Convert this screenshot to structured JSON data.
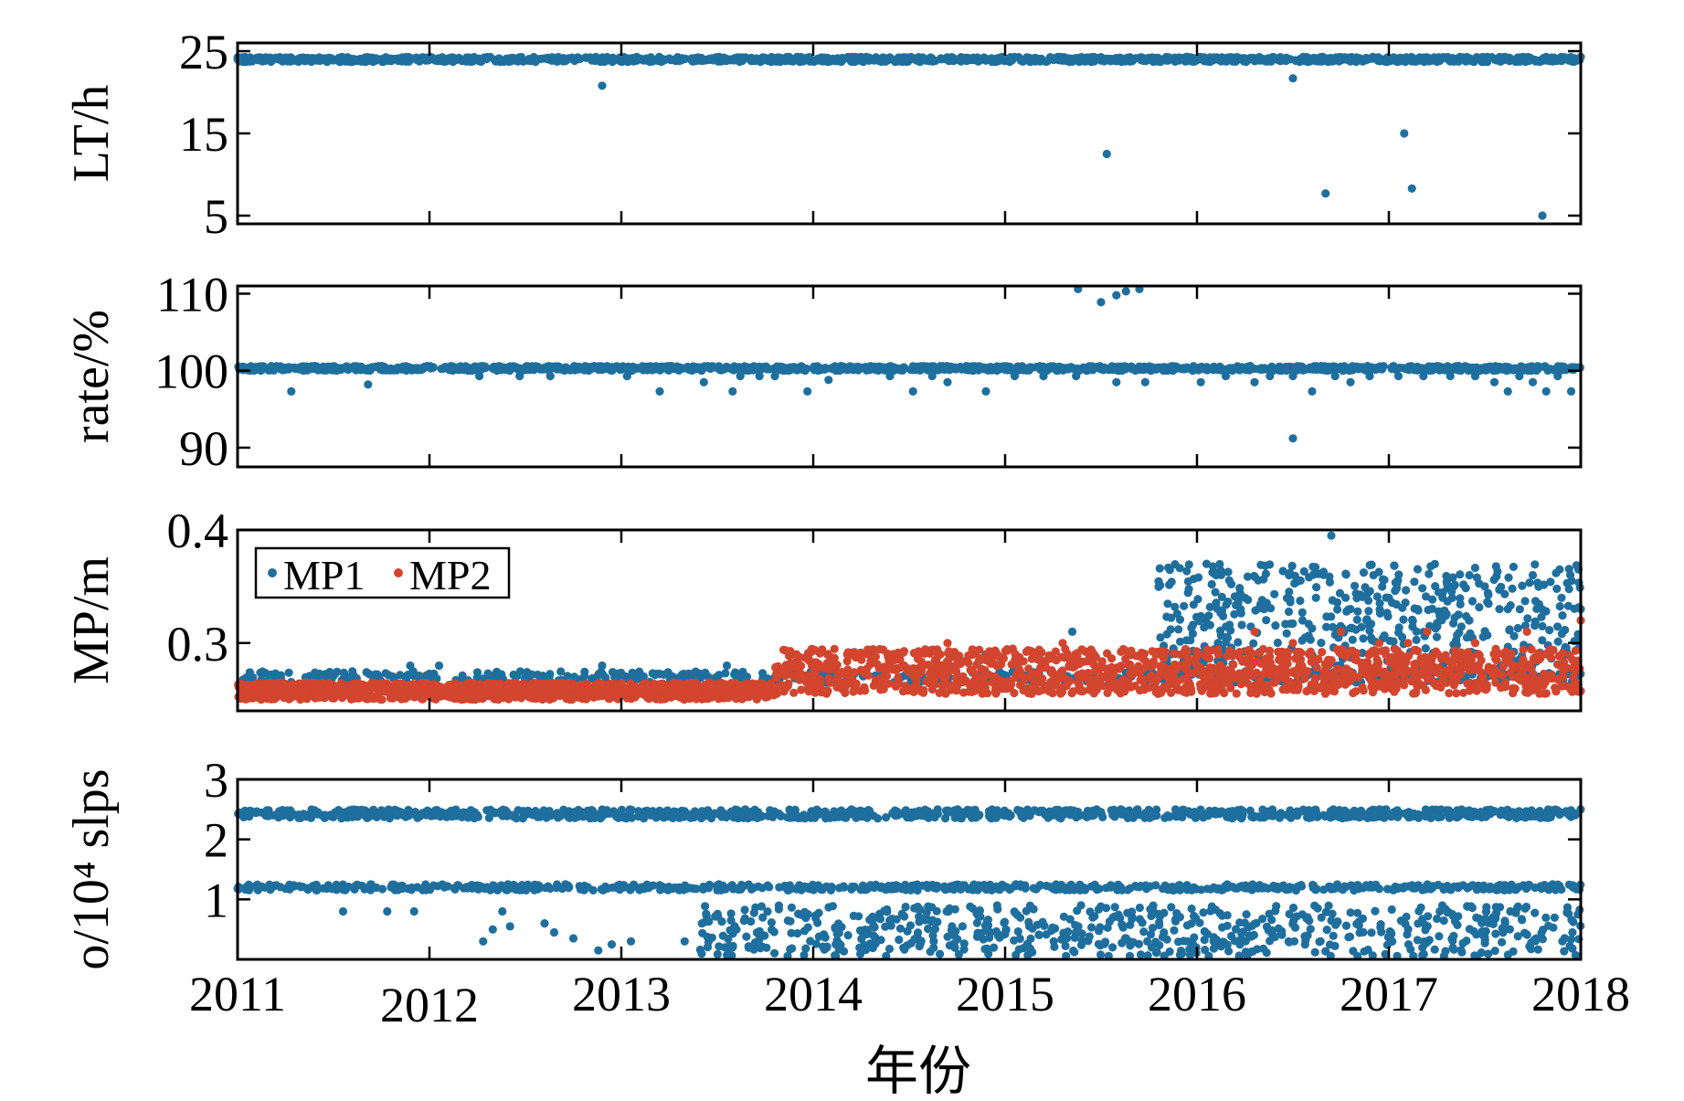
{
  "figure": {
    "xlabel": "年份",
    "x_ticks": [
      "2011",
      "2012",
      "2013",
      "2014",
      "2015",
      "2016",
      "2017",
      "2018"
    ],
    "xlim": [
      2011,
      2018
    ]
  },
  "colors": {
    "mp1": "#1f6f9e",
    "mp2": "#d2452e",
    "axis": "#000000"
  },
  "chart_data": [
    {
      "type": "scatter",
      "ylabel": "LT/h",
      "ylim": [
        4,
        26
      ],
      "yticks": [
        5,
        15,
        25
      ],
      "series": [
        {
          "color": "#1f6f9e",
          "band": {
            "x": [
              2011.0,
              2018.0
            ],
            "y": [
              23.7,
              24.3
            ]
          },
          "x": [
            2012.9,
            2015.53,
            2016.5,
            2016.67,
            2017.08,
            2017.12,
            2017.8
          ],
          "y": [
            20.8,
            12.5,
            21.7,
            7.7,
            15.0,
            8.3,
            5.0
          ]
        }
      ]
    },
    {
      "type": "scatter",
      "ylabel": "rate/%",
      "ylim": [
        87.5,
        111
      ],
      "yticks": [
        90,
        100,
        110
      ],
      "series": [
        {
          "color": "#1f6f9e",
          "band": {
            "x": [
              2011.0,
              2018.0
            ],
            "y": [
              100.0,
              100.6
            ]
          },
          "x": [
            2011.28,
            2011.68,
            2012.26,
            2012.47,
            2012.63,
            2013.03,
            2013.2,
            2013.43,
            2013.58,
            2013.62,
            2013.72,
            2013.8,
            2013.97,
            2014.08,
            2014.4,
            2014.52,
            2014.62,
            2014.7,
            2014.9,
            2015.05,
            2015.2,
            2015.37,
            2015.58,
            2015.73,
            2016.02,
            2016.15,
            2016.3,
            2016.38,
            2016.5,
            2016.6,
            2016.72,
            2016.8,
            2016.9,
            2017.05,
            2017.18,
            2017.32,
            2017.45,
            2017.55,
            2017.62,
            2017.68,
            2017.75,
            2017.82,
            2017.88,
            2017.95,
            2016.5,
            2015.38,
            2015.5,
            2015.58,
            2015.63,
            2015.7
          ],
          "y": [
            97.3,
            98.2,
            99.3,
            99.3,
            99.3,
            99.3,
            97.3,
            98.5,
            97.3,
            99.3,
            99.3,
            99.3,
            97.3,
            98.8,
            99.3,
            97.3,
            99.3,
            98.5,
            97.3,
            99.3,
            99.3,
            99.3,
            98.5,
            98.5,
            98.5,
            99.3,
            98.5,
            99.3,
            99.3,
            97.3,
            99.3,
            98.5,
            99.3,
            99.3,
            99.3,
            99.3,
            99.3,
            98.5,
            97.3,
            99.3,
            98.5,
            97.3,
            99.3,
            97.3,
            91.2,
            110.6,
            108.9,
            109.8,
            110.3,
            110.6
          ]
        }
      ]
    },
    {
      "type": "scatter",
      "ylabel": "MP/m",
      "ylim": [
        0.24,
        0.4
      ],
      "yticks": [
        0.3,
        0.4
      ],
      "legend": {
        "entries": [
          "MP1",
          "MP2"
        ],
        "placement": "top-left"
      },
      "series": [
        {
          "name": "MP1",
          "color": "#1f6f9e",
          "band_low": {
            "x": [
              2011.0,
              2018.0
            ],
            "y": [
              0.265,
              0.275
            ]
          },
          "band_high": {
            "x": [
              2015.8,
              2018.0
            ],
            "y": [
              0.27,
              0.37
            ]
          },
          "x": [
            2011.9,
            2012.05,
            2012.9,
            2013.55,
            2014.3,
            2014.9,
            2015.35,
            2016.05,
            2016.1,
            2016.25,
            2016.35,
            2016.48,
            2016.55,
            2016.62,
            2016.7,
            2016.8,
            2016.92,
            2017.0,
            2017.15,
            2017.28,
            2017.42,
            2017.5,
            2017.62,
            2017.75,
            2017.9,
            2018.0
          ],
          "y": [
            0.28,
            0.28,
            0.28,
            0.28,
            0.29,
            0.29,
            0.31,
            0.37,
            0.36,
            0.34,
            0.33,
            0.36,
            0.32,
            0.34,
            0.395,
            0.33,
            0.36,
            0.34,
            0.33,
            0.34,
            0.36,
            0.35,
            0.33,
            0.36,
            0.34,
            0.33
          ]
        },
        {
          "name": "MP2",
          "color": "#d2452e",
          "band_low": {
            "x": [
              2011.0,
              2013.8
            ],
            "y": [
              0.25,
              0.265
            ]
          },
          "band_high": {
            "x": [
              2013.8,
              2018.0
            ],
            "y": [
              0.255,
              0.295
            ]
          },
          "x": [
            2014.7,
            2015.3,
            2016.3,
            2016.5,
            2016.75,
            2016.95,
            2017.1,
            2017.2,
            2017.45,
            2017.72,
            2018.0
          ],
          "y": [
            0.3,
            0.3,
            0.31,
            0.3,
            0.31,
            0.3,
            0.3,
            0.31,
            0.3,
            0.31,
            0.32
          ]
        }
      ]
    },
    {
      "type": "scatter",
      "ylabel": "o/10⁴ slps",
      "ylim": [
        0,
        3
      ],
      "yticks": [
        1,
        2,
        3
      ],
      "series": [
        {
          "color": "#1f6f9e",
          "band_upper": {
            "x": [
              2011.0,
              2018.0
            ],
            "y": [
              2.35,
              2.5
            ]
          },
          "band_lower": {
            "x": [
              2011.0,
              2018.0
            ],
            "y": [
              1.15,
              1.25
            ]
          },
          "scatter_region": {
            "x": [
              2013.4,
              2018.0
            ],
            "y": [
              0.05,
              0.9
            ]
          },
          "x": [
            2011.55,
            2011.78,
            2011.92,
            2012.28,
            2012.33,
            2012.38,
            2012.42,
            2012.6,
            2012.65,
            2012.75,
            2012.88,
            2012.95,
            2013.05,
            2013.33,
            2013.42,
            2013.6
          ],
          "y": [
            0.8,
            0.8,
            0.8,
            0.3,
            0.5,
            0.8,
            0.55,
            0.6,
            0.45,
            0.35,
            0.15,
            0.25,
            0.3,
            0.3,
            0.6,
            0.5
          ]
        }
      ]
    }
  ]
}
